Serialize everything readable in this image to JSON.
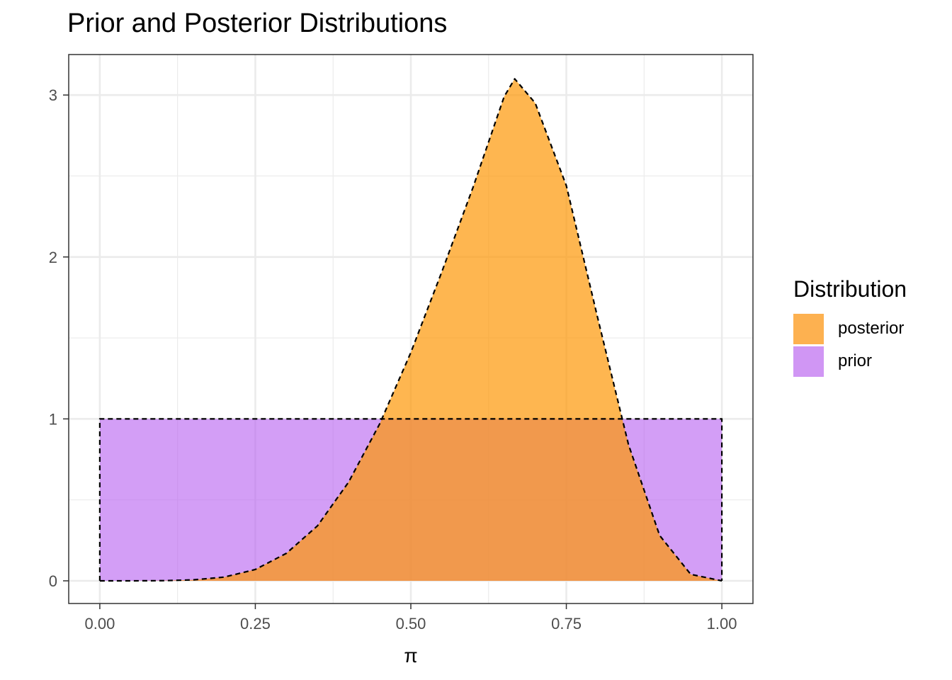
{
  "chart_data": {
    "type": "area",
    "title": "Prior and Posterior Distributions",
    "xlabel": "π",
    "ylabel": "",
    "xlim": [
      -0.05,
      1.05
    ],
    "ylim": [
      -0.14,
      3.25
    ],
    "x_ticks": [
      0.0,
      0.25,
      0.5,
      0.75,
      1.0
    ],
    "x_tick_labels": [
      "0.00",
      "0.25",
      "0.50",
      "0.75",
      "1.00"
    ],
    "y_ticks": [
      0,
      1,
      2,
      3
    ],
    "y_tick_labels": [
      "0",
      "1",
      "2",
      "3"
    ],
    "grid": true,
    "legend": {
      "title": "Distribution",
      "position": "right",
      "entries": [
        {
          "label": "posterior",
          "color": "#fdb150"
        },
        {
          "label": "prior",
          "color": "#d096f4"
        }
      ]
    },
    "series": [
      {
        "name": "prior",
        "fill": "#b55df0",
        "fill_opacity": 0.6,
        "x": [
          0.0,
          1.0
        ],
        "y": [
          1.0,
          1.0
        ]
      },
      {
        "name": "posterior",
        "fill": "#fd9706",
        "fill_opacity": 0.7,
        "x": [
          0.0,
          0.05,
          0.1,
          0.15,
          0.2,
          0.25,
          0.3,
          0.35,
          0.4,
          0.45,
          0.5,
          0.55,
          0.6,
          0.65,
          0.667,
          0.7,
          0.75,
          0.8,
          0.85,
          0.9,
          0.95,
          1.0
        ],
        "y": [
          0.0,
          0.0,
          0.001,
          0.006,
          0.023,
          0.07,
          0.17,
          0.34,
          0.61,
          0.97,
          1.41,
          1.91,
          2.43,
          2.99,
          3.1,
          2.95,
          2.44,
          1.63,
          0.84,
          0.28,
          0.04,
          0.0
        ]
      }
    ]
  }
}
